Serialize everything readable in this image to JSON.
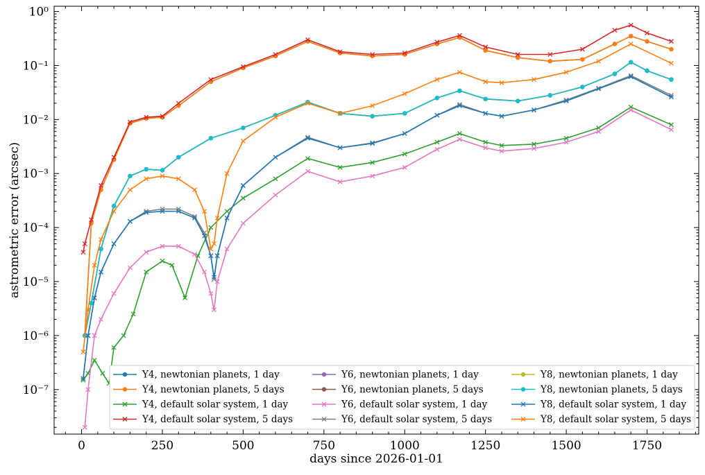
{
  "chart_data": {
    "type": "line",
    "title": "",
    "xlabel": "days since 2026-01-01",
    "ylabel": "astrometric error (arcsec)",
    "xlim": [
      -85,
      1910
    ],
    "ylim": [
      1.5e-08,
      1.25
    ],
    "yscale": "log",
    "grid": false,
    "legend_position": "lower-right",
    "legend_columns": 3,
    "x_ticks": [
      0,
      250,
      500,
      750,
      1000,
      1250,
      1500,
      1750
    ],
    "x_tick_labels": [
      "0",
      "250",
      "500",
      "750",
      "1000",
      "1250",
      "1500",
      "1750"
    ],
    "y_ticks": [
      1e-07,
      1e-06,
      1e-05,
      0.0001,
      0.001,
      0.01,
      0.1,
      1
    ],
    "y_tick_labels": [
      "10⁻⁷",
      "10⁻⁶",
      "10⁻⁵",
      "10⁻⁴",
      "10⁻³",
      "10⁻²",
      "10⁻¹",
      "10⁰"
    ],
    "series": [
      {
        "name": "Y4, newtonian planets, 1 day",
        "color": "#1f77b4",
        "marker": "circle",
        "x": [
          10,
          30,
          60,
          100,
          150,
          200,
          250,
          300,
          400,
          500,
          600,
          700,
          800,
          900,
          1000,
          1100,
          1170,
          1250,
          1350,
          1450,
          1550,
          1650,
          1700,
          1750,
          1825
        ],
        "y": [
          1e-06,
          0.00012,
          0.0005,
          0.0018,
          0.0085,
          0.0105,
          0.011,
          0.018,
          0.05,
          0.09,
          0.15,
          0.28,
          0.17,
          0.15,
          0.16,
          0.25,
          0.33,
          0.19,
          0.14,
          0.12,
          0.13,
          0.25,
          0.35,
          0.28,
          0.2
        ]
      },
      {
        "name": "Y4, newtonian planets, 5 days",
        "color": "#ff7f0e",
        "marker": "circle",
        "x": [
          10,
          30,
          60,
          100,
          150,
          200,
          250,
          300,
          400,
          500,
          600,
          700,
          800,
          900,
          1000,
          1100,
          1170,
          1250,
          1350,
          1450,
          1550,
          1650,
          1700,
          1750,
          1825
        ],
        "y": [
          1e-06,
          0.00012,
          0.0005,
          0.0018,
          0.0085,
          0.0105,
          0.011,
          0.018,
          0.05,
          0.09,
          0.15,
          0.28,
          0.17,
          0.15,
          0.16,
          0.25,
          0.33,
          0.19,
          0.14,
          0.12,
          0.13,
          0.25,
          0.35,
          0.28,
          0.2
        ]
      },
      {
        "name": "Y4, default solar system, 1 day",
        "color": "#2ca02c",
        "marker": "x",
        "x": [
          5,
          20,
          40,
          65,
          85,
          100,
          130,
          160,
          200,
          250,
          280,
          320,
          360,
          400,
          450,
          500,
          600,
          700,
          800,
          900,
          1000,
          1100,
          1170,
          1250,
          1300,
          1400,
          1500,
          1600,
          1700,
          1825
        ],
        "y": [
          1.5e-07,
          2e-07,
          3.5e-07,
          2e-07,
          1.3e-07,
          6e-07,
          1e-06,
          2.5e-06,
          1.5e-05,
          2.4e-05,
          2e-05,
          5e-06,
          3e-05,
          0.0001,
          0.0002,
          0.00035,
          0.0008,
          0.0019,
          0.0013,
          0.0016,
          0.0023,
          0.0038,
          0.0055,
          0.0038,
          0.0033,
          0.0035,
          0.0045,
          0.007,
          0.017,
          0.008
        ]
      },
      {
        "name": "Y4, default solar system, 5 days",
        "color": "#d62728",
        "marker": "x",
        "x": [
          5,
          10,
          30,
          60,
          100,
          150,
          200,
          250,
          300,
          400,
          500,
          600,
          700,
          800,
          900,
          1000,
          1100,
          1170,
          1250,
          1350,
          1450,
          1550,
          1650,
          1700,
          1750,
          1825
        ],
        "y": [
          3.5e-05,
          5e-05,
          0.00014,
          0.0006,
          0.002,
          0.009,
          0.011,
          0.0115,
          0.02,
          0.055,
          0.095,
          0.16,
          0.3,
          0.18,
          0.16,
          0.17,
          0.27,
          0.36,
          0.22,
          0.16,
          0.16,
          0.2,
          0.45,
          0.56,
          0.4,
          0.28
        ]
      },
      {
        "name": "Y6, newtonian planets, 1 day",
        "color": "#9467bd",
        "marker": "circle",
        "x": [
          10,
          30,
          60,
          100,
          150,
          200,
          250,
          300,
          400,
          500,
          600,
          700,
          800,
          900,
          1000,
          1100,
          1170,
          1250,
          1350,
          1450,
          1550,
          1650,
          1700,
          1750,
          1825
        ],
        "y": [
          1e-06,
          4e-06,
          4e-05,
          0.00025,
          0.0009,
          0.0012,
          0.00115,
          0.002,
          0.0045,
          0.007,
          0.012,
          0.021,
          0.013,
          0.0115,
          0.013,
          0.025,
          0.034,
          0.024,
          0.022,
          0.028,
          0.04,
          0.07,
          0.115,
          0.08,
          0.055
        ]
      },
      {
        "name": "Y6, newtonian planets, 5 days",
        "color": "#8c564b",
        "marker": "circle",
        "x": [
          10,
          30,
          60,
          100,
          150,
          200,
          250,
          300,
          400,
          500,
          600,
          700,
          800,
          900,
          1000,
          1100,
          1170,
          1250,
          1350,
          1450,
          1550,
          1650,
          1700,
          1750,
          1825
        ],
        "y": [
          1e-06,
          4e-06,
          4e-05,
          0.00025,
          0.0009,
          0.0012,
          0.00115,
          0.002,
          0.0045,
          0.007,
          0.012,
          0.021,
          0.013,
          0.0115,
          0.013,
          0.025,
          0.034,
          0.024,
          0.022,
          0.028,
          0.04,
          0.07,
          0.115,
          0.08,
          0.055
        ]
      },
      {
        "name": "Y6, default solar system, 1 day",
        "color": "#e377c2",
        "marker": "x",
        "x": [
          10,
          20,
          40,
          60,
          100,
          150,
          200,
          250,
          300,
          350,
          380,
          400,
          410,
          420,
          450,
          500,
          600,
          700,
          800,
          900,
          1000,
          1100,
          1170,
          1250,
          1300,
          1400,
          1500,
          1600,
          1700,
          1825
        ],
        "y": [
          2e-08,
          1e-07,
          1e-06,
          2e-06,
          6e-06,
          1.8e-05,
          3.5e-05,
          4.5e-05,
          4.5e-05,
          3.2e-05,
          1.5e-05,
          6e-06,
          3e-06,
          1e-05,
          4e-05,
          0.00012,
          0.0004,
          0.0011,
          0.0007,
          0.0009,
          0.0013,
          0.0028,
          0.0043,
          0.003,
          0.0026,
          0.0029,
          0.0038,
          0.006,
          0.015,
          0.0065
        ]
      },
      {
        "name": "Y6, default solar system, 5 days",
        "color": "#7f7f7f",
        "marker": "x",
        "x": [
          5,
          20,
          40,
          60,
          100,
          150,
          200,
          250,
          300,
          350,
          380,
          400,
          410,
          420,
          450,
          500,
          600,
          700,
          800,
          900,
          1000,
          1100,
          1170,
          1250,
          1300,
          1400,
          1500,
          1600,
          1700,
          1825
        ],
        "y": [
          1.6e-07,
          1e-06,
          5e-06,
          1.5e-05,
          5e-05,
          0.00013,
          0.0002,
          0.00022,
          0.00022,
          0.00016,
          8e-05,
          3e-05,
          1.1e-05,
          3e-05,
          0.00015,
          0.0006,
          0.002,
          0.0047,
          0.003,
          0.0037,
          0.0055,
          0.012,
          0.019,
          0.013,
          0.0115,
          0.015,
          0.023,
          0.038,
          0.065,
          0.028
        ]
      },
      {
        "name": "Y8, newtonian planets, 1 day",
        "color": "#bcbd22",
        "marker": "circle",
        "x": [
          10,
          30,
          60,
          100,
          150,
          200,
          250,
          300,
          400,
          500,
          600,
          700,
          800,
          900,
          1000,
          1100,
          1170,
          1250,
          1350,
          1450,
          1550,
          1650,
          1700,
          1750,
          1825
        ],
        "y": [
          1e-06,
          4e-06,
          4e-05,
          0.00025,
          0.0009,
          0.0012,
          0.00115,
          0.002,
          0.0045,
          0.007,
          0.012,
          0.021,
          0.013,
          0.0115,
          0.013,
          0.025,
          0.034,
          0.024,
          0.022,
          0.028,
          0.04,
          0.07,
          0.115,
          0.08,
          0.055
        ]
      },
      {
        "name": "Y8, newtonian planets, 5 days",
        "color": "#17becf",
        "marker": "circle",
        "x": [
          10,
          30,
          60,
          100,
          150,
          200,
          250,
          300,
          400,
          500,
          600,
          700,
          800,
          900,
          1000,
          1100,
          1170,
          1250,
          1350,
          1450,
          1550,
          1650,
          1700,
          1750,
          1825
        ],
        "y": [
          1e-06,
          4e-06,
          4e-05,
          0.00025,
          0.0009,
          0.0012,
          0.00115,
          0.002,
          0.0045,
          0.007,
          0.012,
          0.021,
          0.013,
          0.0115,
          0.013,
          0.025,
          0.034,
          0.024,
          0.022,
          0.028,
          0.04,
          0.07,
          0.115,
          0.08,
          0.055
        ]
      },
      {
        "name": "Y8, default solar system, 1 day",
        "color": "#1f77b4",
        "marker": "x",
        "x": [
          5,
          20,
          40,
          60,
          100,
          150,
          200,
          250,
          300,
          350,
          380,
          400,
          410,
          420,
          450,
          500,
          600,
          700,
          800,
          900,
          1000,
          1100,
          1170,
          1250,
          1300,
          1400,
          1500,
          1600,
          1700,
          1825
        ],
        "y": [
          1.6e-07,
          1e-06,
          5e-06,
          1.5e-05,
          5e-05,
          0.00013,
          0.00019,
          0.0002,
          0.0002,
          0.00015,
          7e-05,
          3e-05,
          1.2e-05,
          3e-05,
          0.00015,
          0.0006,
          0.002,
          0.0045,
          0.003,
          0.0036,
          0.0055,
          0.012,
          0.018,
          0.013,
          0.0115,
          0.015,
          0.022,
          0.037,
          0.062,
          0.026
        ]
      },
      {
        "name": "Y8, default solar system, 5 days",
        "color": "#ff7f0e",
        "marker": "x",
        "x": [
          5,
          20,
          40,
          60,
          100,
          150,
          200,
          250,
          300,
          350,
          380,
          400,
          410,
          420,
          450,
          500,
          600,
          700,
          800,
          900,
          1000,
          1100,
          1170,
          1250,
          1300,
          1400,
          1500,
          1600,
          1700,
          1825
        ],
        "y": [
          5e-07,
          3e-06,
          2e-05,
          6e-05,
          0.0002,
          0.0005,
          0.0008,
          0.0009,
          0.0008,
          0.0005,
          0.0002,
          4e-05,
          5e-05,
          0.00015,
          0.001,
          0.004,
          0.011,
          0.02,
          0.013,
          0.018,
          0.03,
          0.055,
          0.075,
          0.05,
          0.048,
          0.055,
          0.075,
          0.12,
          0.25,
          0.11
        ]
      }
    ]
  }
}
